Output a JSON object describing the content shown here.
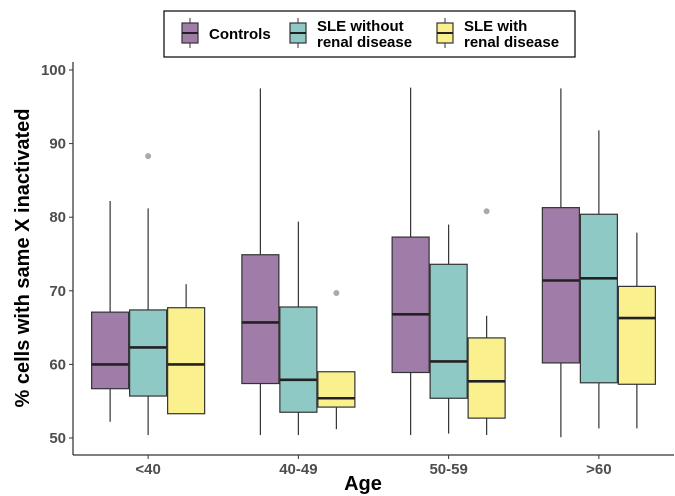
{
  "chart_data": {
    "type": "box",
    "xlabel": "Age",
    "ylabel": "% cells with same X inactivated",
    "ylim": [
      50,
      100
    ],
    "yticks": [
      50,
      60,
      70,
      80,
      90,
      100
    ],
    "categories": [
      "<40",
      "40-49",
      "50-59",
      ">60"
    ],
    "legend_position": "top",
    "grid": false,
    "series": [
      {
        "name": "Controls",
        "name_lines": [
          "Controls"
        ],
        "color": "#a07ca8",
        "boxes": [
          {
            "min": 52.2,
            "q1": 56.7,
            "median": 60.0,
            "q3": 67.1,
            "max": 82.2,
            "outliers": []
          },
          {
            "min": 50.4,
            "q1": 57.4,
            "median": 65.7,
            "q3": 74.9,
            "max": 97.5,
            "outliers": []
          },
          {
            "min": 50.4,
            "q1": 58.9,
            "median": 66.8,
            "q3": 77.3,
            "max": 97.6,
            "outliers": []
          },
          {
            "min": 50.1,
            "q1": 60.2,
            "median": 71.4,
            "q3": 81.3,
            "max": 97.5,
            "outliers": []
          }
        ]
      },
      {
        "name": "SLE without renal disease",
        "name_lines": [
          "SLE without",
          "renal disease"
        ],
        "color": "#8fc9c6",
        "boxes": [
          {
            "min": 50.4,
            "q1": 55.7,
            "median": 62.3,
            "q3": 67.4,
            "max": 81.2,
            "outliers": [
              88.3
            ]
          },
          {
            "min": 50.4,
            "q1": 53.5,
            "median": 57.9,
            "q3": 67.8,
            "max": 79.4,
            "outliers": []
          },
          {
            "min": 50.6,
            "q1": 55.4,
            "median": 60.4,
            "q3": 73.6,
            "max": 79.0,
            "outliers": []
          },
          {
            "min": 51.3,
            "q1": 57.5,
            "median": 71.7,
            "q3": 80.4,
            "max": 91.8,
            "outliers": []
          }
        ]
      },
      {
        "name": "SLE with renal disease",
        "name_lines": [
          "SLE with",
          "renal disease"
        ],
        "color": "#fbf08e",
        "boxes": [
          {
            "min": 53.3,
            "q1": 53.3,
            "median": 60.0,
            "q3": 67.7,
            "max": 70.9,
            "outliers": []
          },
          {
            "min": 51.2,
            "q1": 54.2,
            "median": 55.4,
            "q3": 59.0,
            "max": 59.0,
            "outliers": [
              69.7
            ]
          },
          {
            "min": 50.4,
            "q1": 52.7,
            "median": 57.7,
            "q3": 63.6,
            "max": 66.6,
            "outliers": [
              80.8
            ]
          },
          {
            "min": 51.3,
            "q1": 57.3,
            "median": 66.3,
            "q3": 70.6,
            "max": 77.9,
            "outliers": []
          }
        ]
      }
    ]
  }
}
